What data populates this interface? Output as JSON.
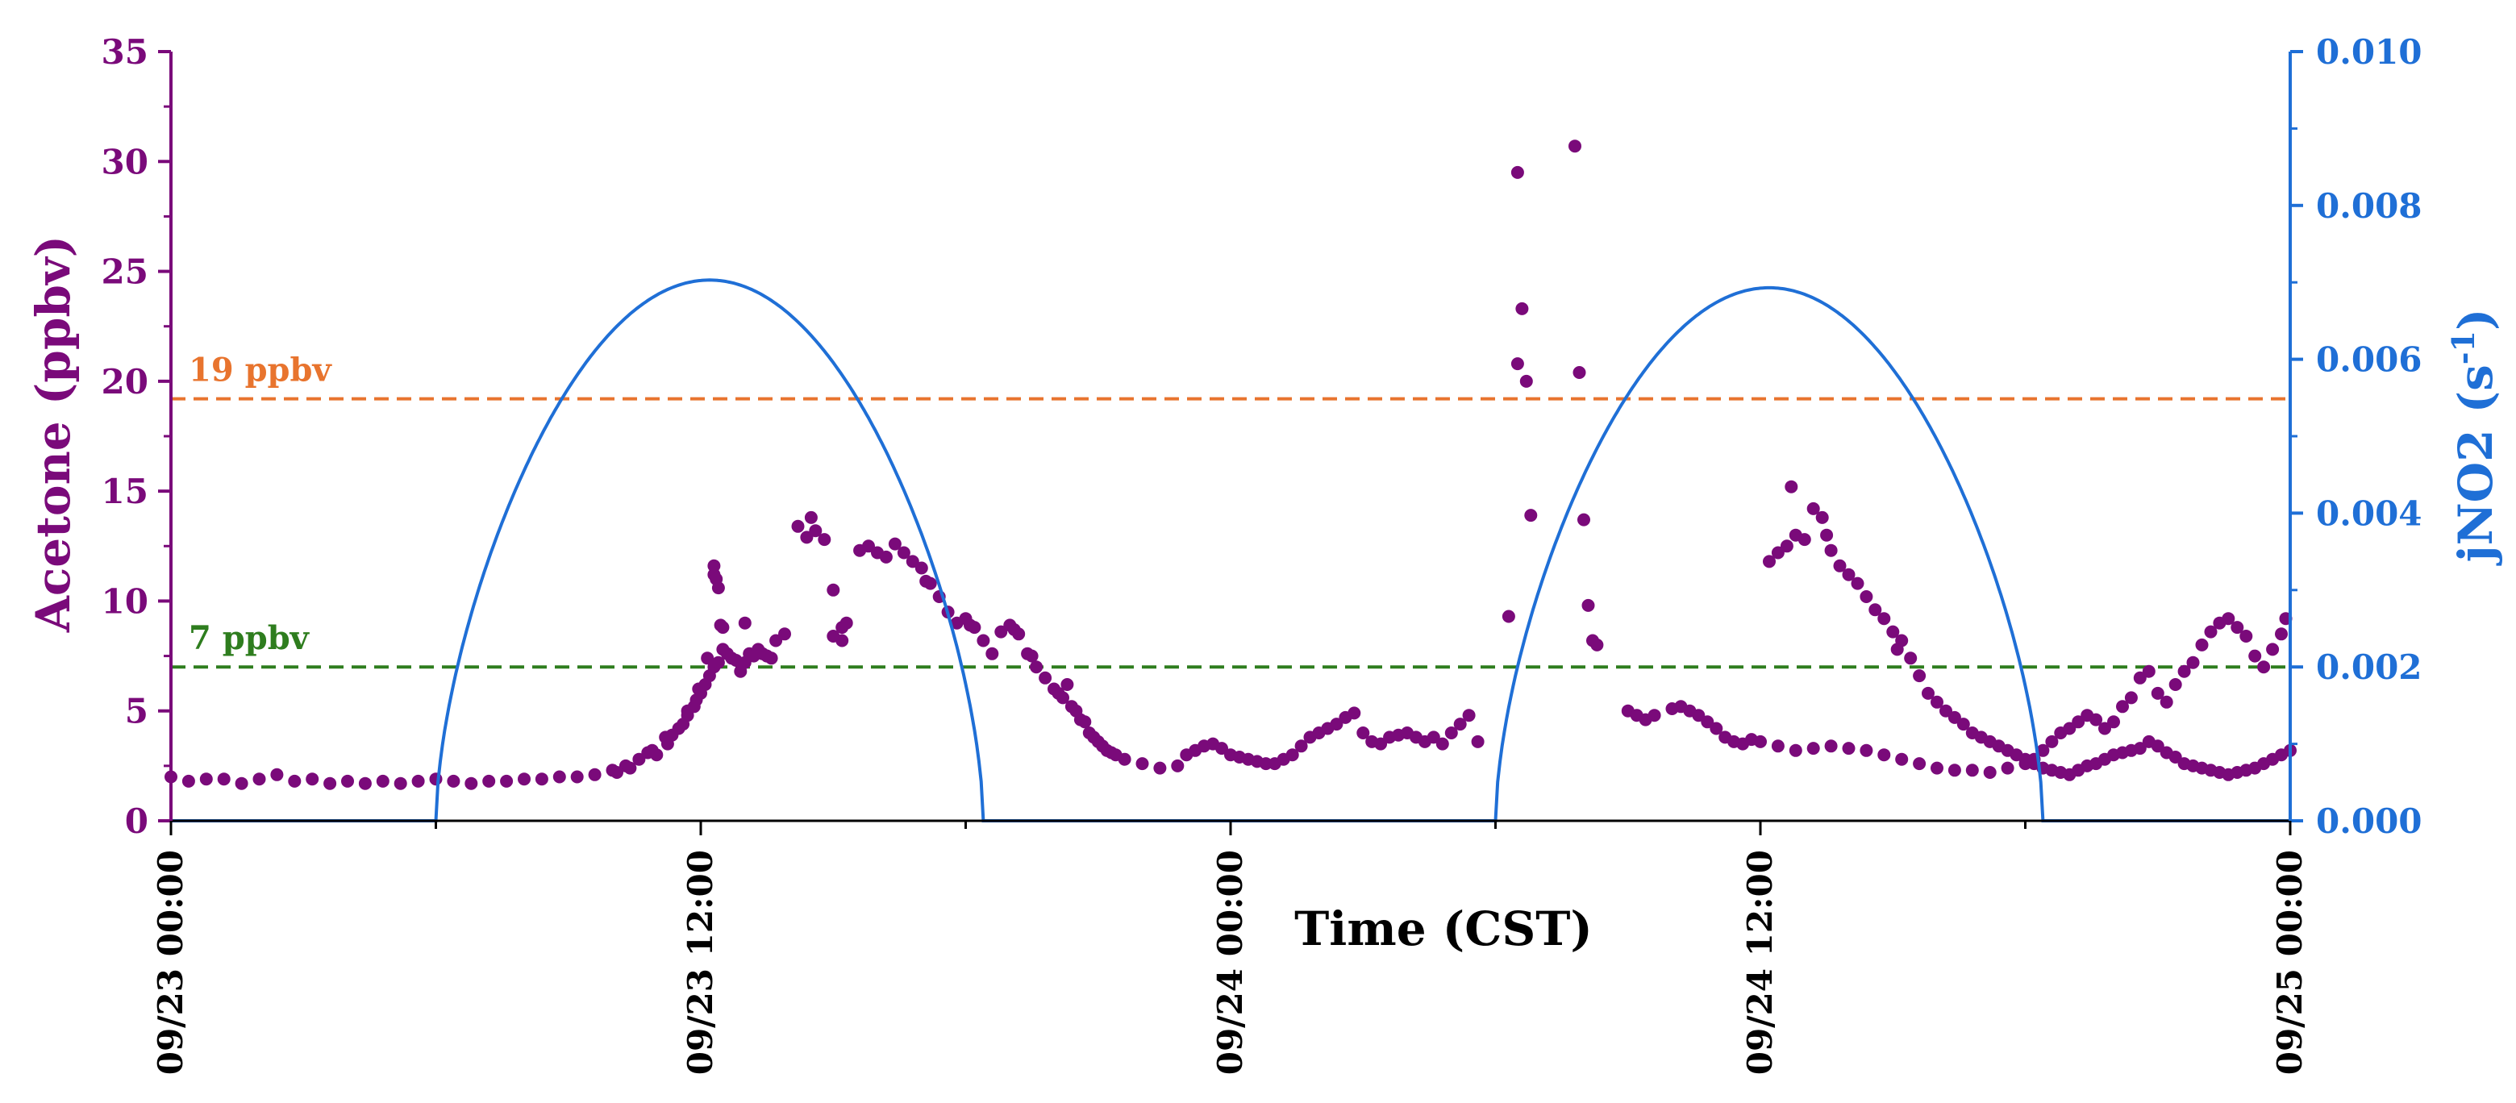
{
  "chart_data": {
    "type": "scatter+line",
    "title": "",
    "xlabel": "Time (CST)",
    "ylabel_left": "Acetone (ppbv)",
    "ylabel_right": "jNO2 (s⁻¹)",
    "ylabel_right_base": "jNO2 (s",
    "ylabel_right_sup": "-1",
    "ylabel_right_close": ")",
    "x_range_hours": [
      0,
      48
    ],
    "x_ticks": [
      {
        "hour": 0,
        "label": "09/23 00:00"
      },
      {
        "hour": 12,
        "label": "09/23 12:00"
      },
      {
        "hour": 24,
        "label": "09/24 00:00"
      },
      {
        "hour": 36,
        "label": "09/24 12:00"
      },
      {
        "hour": 48,
        "label": "09/25 00:00"
      }
    ],
    "y_left_range": [
      0,
      35
    ],
    "y_left_ticks": [
      "0",
      "5",
      "10",
      "15",
      "20",
      "25",
      "30",
      "35"
    ],
    "y_right_range": [
      0,
      0.01
    ],
    "y_right_ticks": [
      "0.000",
      "0.002",
      "0.004",
      "0.006",
      "0.008",
      "0.010"
    ],
    "reference_lines": [
      {
        "value": 19.2,
        "label": "19 ppbv",
        "color": "#E8742E"
      },
      {
        "value": 7,
        "label": "7 ppbv",
        "color": "#2E7D1E"
      }
    ],
    "series": [
      {
        "name": "Acetone",
        "axis": "left",
        "color": "#7A0A7A",
        "points": [
          [
            0.0,
            2.0
          ],
          [
            0.4,
            1.8
          ],
          [
            0.8,
            1.9
          ],
          [
            1.2,
            1.9
          ],
          [
            1.6,
            1.7
          ],
          [
            2.0,
            1.9
          ],
          [
            2.4,
            2.1
          ],
          [
            2.8,
            1.8
          ],
          [
            3.2,
            1.9
          ],
          [
            3.6,
            1.7
          ],
          [
            4.0,
            1.8
          ],
          [
            4.4,
            1.7
          ],
          [
            4.8,
            1.8
          ],
          [
            5.2,
            1.7
          ],
          [
            5.6,
            1.8
          ],
          [
            6.0,
            1.9
          ],
          [
            6.4,
            1.8
          ],
          [
            6.8,
            1.7
          ],
          [
            7.2,
            1.8
          ],
          [
            7.6,
            1.8
          ],
          [
            8.0,
            1.9
          ],
          [
            8.4,
            1.9
          ],
          [
            8.8,
            2.0
          ],
          [
            9.2,
            2.0
          ],
          [
            9.6,
            2.1
          ],
          [
            10.0,
            2.3
          ],
          [
            10.3,
            2.5
          ],
          [
            10.6,
            2.8
          ],
          [
            10.9,
            3.2
          ],
          [
            11.2,
            3.8
          ],
          [
            11.5,
            4.2
          ],
          [
            11.7,
            4.8
          ],
          [
            11.9,
            5.5
          ],
          [
            12.1,
            6.2
          ],
          [
            12.3,
            7.0
          ],
          [
            12.5,
            7.8
          ],
          [
            12.7,
            7.4
          ],
          [
            12.9,
            6.8
          ],
          [
            13.1,
            7.6
          ],
          [
            13.3,
            7.8
          ],
          [
            13.5,
            7.5
          ],
          [
            13.7,
            8.2
          ],
          [
            10.4,
            2.4
          ],
          [
            11.0,
            3.0
          ],
          [
            11.6,
            4.4
          ],
          [
            12.0,
            5.8
          ],
          [
            12.4,
            7.2
          ],
          [
            12.6,
            7.6
          ],
          [
            12.8,
            7.3
          ],
          [
            13.0,
            7.2
          ],
          [
            13.2,
            7.5
          ],
          [
            13.4,
            7.6
          ],
          [
            13.6,
            7.4
          ],
          [
            13.9,
            8.5
          ],
          [
            12.2,
            6.6
          ],
          [
            12.5,
            8.8
          ],
          [
            12.3,
            11.6
          ],
          [
            12.3,
            11.2
          ],
          [
            12.4,
            10.6
          ],
          [
            11.95,
            6.0
          ],
          [
            12.35,
            11.0
          ],
          [
            11.85,
            5.2
          ],
          [
            11.25,
            3.5
          ],
          [
            11.35,
            3.9
          ],
          [
            10.8,
            3.1
          ],
          [
            12.15,
            7.4
          ],
          [
            13.0,
            9.0
          ],
          [
            13.5,
            7.5
          ],
          [
            11.7,
            5.0
          ],
          [
            10.1,
            2.2
          ],
          [
            12.45,
            8.9
          ],
          [
            14.5,
            13.8
          ],
          [
            14.6,
            13.2
          ],
          [
            14.8,
            12.8
          ],
          [
            15.0,
            10.5
          ],
          [
            15.2,
            8.8
          ],
          [
            15.0,
            8.4
          ],
          [
            15.2,
            8.2
          ],
          [
            15.8,
            12.5
          ],
          [
            16.0,
            12.2
          ],
          [
            16.2,
            12.0
          ],
          [
            16.4,
            12.6
          ],
          [
            16.6,
            12.2
          ],
          [
            16.8,
            11.8
          ],
          [
            17.0,
            11.5
          ],
          [
            17.2,
            10.8
          ],
          [
            17.4,
            10.2
          ],
          [
            17.6,
            9.5
          ],
          [
            17.8,
            9.0
          ],
          [
            18.0,
            9.2
          ],
          [
            18.2,
            8.8
          ],
          [
            18.4,
            8.2
          ],
          [
            18.6,
            7.6
          ],
          [
            18.8,
            8.6
          ],
          [
            19.0,
            8.9
          ],
          [
            19.2,
            8.5
          ],
          [
            19.4,
            7.6
          ],
          [
            19.6,
            7.0
          ],
          [
            19.8,
            6.5
          ],
          [
            20.0,
            6.0
          ],
          [
            20.2,
            5.6
          ],
          [
            20.4,
            5.2
          ],
          [
            20.6,
            4.6
          ],
          [
            20.8,
            4.0
          ],
          [
            21.0,
            3.6
          ],
          [
            21.2,
            3.2
          ],
          [
            21.4,
            3.0
          ],
          [
            21.6,
            2.8
          ],
          [
            22.0,
            2.6
          ],
          [
            22.4,
            2.4
          ],
          [
            22.8,
            2.5
          ],
          [
            23.0,
            3.0
          ],
          [
            23.2,
            3.2
          ],
          [
            23.4,
            3.4
          ],
          [
            23.6,
            3.5
          ],
          [
            23.8,
            3.3
          ],
          [
            24.0,
            3.0
          ],
          [
            24.2,
            2.9
          ],
          [
            24.4,
            2.8
          ],
          [
            24.6,
            2.7
          ],
          [
            24.8,
            2.6
          ],
          [
            25.0,
            2.6
          ],
          [
            25.2,
            2.8
          ],
          [
            25.4,
            3.0
          ],
          [
            25.6,
            3.4
          ],
          [
            25.8,
            3.8
          ],
          [
            26.0,
            4.0
          ],
          [
            26.2,
            4.2
          ],
          [
            26.4,
            4.4
          ],
          [
            26.6,
            4.7
          ],
          [
            26.8,
            4.9
          ],
          [
            27.0,
            4.0
          ],
          [
            27.2,
            3.6
          ],
          [
            27.4,
            3.5
          ],
          [
            27.6,
            3.8
          ],
          [
            27.8,
            3.9
          ],
          [
            28.0,
            4.0
          ],
          [
            28.2,
            3.8
          ],
          [
            28.4,
            3.6
          ],
          [
            28.6,
            3.8
          ],
          [
            28.8,
            3.5
          ],
          [
            29.0,
            4.0
          ],
          [
            29.2,
            4.4
          ],
          [
            29.4,
            4.8
          ],
          [
            29.6,
            3.6
          ],
          [
            14.2,
            13.4
          ],
          [
            14.4,
            12.9
          ],
          [
            15.3,
            9.0
          ],
          [
            15.6,
            12.3
          ],
          [
            17.1,
            10.9
          ],
          [
            18.1,
            8.9
          ],
          [
            19.1,
            8.7
          ],
          [
            19.5,
            7.5
          ],
          [
            20.1,
            5.8
          ],
          [
            20.3,
            6.2
          ],
          [
            20.5,
            5.0
          ],
          [
            20.7,
            4.5
          ],
          [
            20.9,
            3.8
          ],
          [
            21.1,
            3.4
          ],
          [
            21.3,
            3.1
          ],
          [
            30.3,
            9.3
          ],
          [
            30.5,
            29.5
          ],
          [
            30.6,
            23.3
          ],
          [
            30.5,
            20.8
          ],
          [
            30.7,
            20.0
          ],
          [
            30.8,
            13.9
          ],
          [
            31.8,
            30.7
          ],
          [
            31.9,
            20.4
          ],
          [
            32.0,
            13.7
          ],
          [
            32.1,
            9.8
          ],
          [
            32.2,
            8.2
          ],
          [
            32.3,
            8.0
          ],
          [
            33.0,
            5.0
          ],
          [
            33.2,
            4.8
          ],
          [
            33.4,
            4.6
          ],
          [
            33.6,
            4.8
          ],
          [
            34.0,
            5.1
          ],
          [
            34.2,
            5.2
          ],
          [
            34.4,
            5.0
          ],
          [
            34.6,
            4.8
          ],
          [
            34.8,
            4.5
          ],
          [
            35.0,
            4.2
          ],
          [
            35.2,
            3.8
          ],
          [
            35.4,
            3.6
          ],
          [
            35.6,
            3.5
          ],
          [
            35.8,
            3.7
          ],
          [
            36.0,
            3.6
          ],
          [
            36.4,
            3.4
          ],
          [
            36.8,
            3.2
          ],
          [
            37.2,
            3.3
          ],
          [
            37.6,
            3.4
          ],
          [
            38.0,
            3.3
          ],
          [
            38.4,
            3.2
          ],
          [
            38.8,
            3.0
          ],
          [
            39.2,
            2.8
          ],
          [
            39.6,
            2.6
          ],
          [
            40.0,
            2.4
          ],
          [
            40.4,
            2.3
          ],
          [
            40.8,
            2.3
          ],
          [
            41.2,
            2.2
          ],
          [
            41.6,
            2.4
          ],
          [
            42.0,
            2.6
          ],
          [
            42.2,
            2.8
          ],
          [
            42.4,
            3.2
          ],
          [
            42.6,
            3.6
          ],
          [
            42.8,
            4.0
          ],
          [
            43.0,
            4.2
          ],
          [
            43.2,
            4.5
          ],
          [
            43.4,
            4.8
          ],
          [
            43.6,
            4.6
          ],
          [
            43.8,
            4.2
          ],
          [
            44.0,
            4.5
          ],
          [
            44.2,
            5.2
          ],
          [
            44.4,
            5.6
          ],
          [
            44.6,
            6.5
          ],
          [
            44.8,
            6.8
          ],
          [
            45.0,
            5.8
          ],
          [
            45.2,
            5.4
          ],
          [
            45.4,
            6.2
          ],
          [
            45.6,
            6.8
          ],
          [
            45.8,
            7.2
          ],
          [
            46.0,
            8.0
          ],
          [
            46.2,
            8.6
          ],
          [
            46.4,
            9.0
          ],
          [
            46.6,
            9.2
          ],
          [
            46.8,
            8.8
          ],
          [
            47.0,
            8.4
          ],
          [
            47.2,
            7.5
          ],
          [
            47.4,
            7.0
          ],
          [
            47.6,
            7.8
          ],
          [
            47.8,
            8.5
          ],
          [
            47.9,
            9.2
          ],
          [
            36.2,
            11.8
          ],
          [
            36.4,
            12.2
          ],
          [
            36.6,
            12.5
          ],
          [
            36.8,
            13.0
          ],
          [
            37.0,
            12.8
          ],
          [
            36.7,
            15.2
          ],
          [
            37.2,
            14.2
          ],
          [
            37.4,
            13.8
          ],
          [
            37.5,
            13.0
          ],
          [
            37.6,
            12.3
          ],
          [
            37.8,
            11.6
          ],
          [
            38.0,
            11.2
          ],
          [
            38.2,
            10.8
          ],
          [
            38.4,
            10.2
          ],
          [
            38.6,
            9.6
          ],
          [
            38.8,
            9.2
          ],
          [
            39.0,
            8.6
          ],
          [
            39.1,
            7.8
          ],
          [
            39.2,
            8.2
          ],
          [
            39.4,
            7.4
          ],
          [
            39.6,
            6.6
          ],
          [
            39.8,
            5.8
          ],
          [
            40.0,
            5.4
          ],
          [
            40.2,
            5.0
          ],
          [
            40.4,
            4.7
          ],
          [
            40.6,
            4.4
          ],
          [
            40.8,
            4.0
          ],
          [
            41.0,
            3.8
          ],
          [
            41.2,
            3.6
          ],
          [
            41.4,
            3.4
          ],
          [
            41.6,
            3.2
          ],
          [
            41.8,
            3.0
          ],
          [
            42.0,
            2.8
          ],
          [
            42.2,
            2.6
          ],
          [
            42.4,
            2.4
          ],
          [
            42.6,
            2.3
          ],
          [
            42.8,
            2.2
          ],
          [
            43.0,
            2.1
          ],
          [
            43.2,
            2.3
          ],
          [
            43.4,
            2.5
          ],
          [
            43.6,
            2.6
          ],
          [
            43.8,
            2.8
          ],
          [
            44.0,
            3.0
          ],
          [
            44.2,
            3.1
          ],
          [
            44.4,
            3.2
          ],
          [
            44.6,
            3.3
          ],
          [
            44.8,
            3.6
          ],
          [
            45.0,
            3.4
          ],
          [
            45.2,
            3.1
          ],
          [
            45.4,
            2.9
          ],
          [
            45.6,
            2.6
          ],
          [
            45.8,
            2.5
          ],
          [
            46.0,
            2.4
          ],
          [
            46.2,
            2.3
          ],
          [
            46.4,
            2.2
          ],
          [
            46.6,
            2.1
          ],
          [
            46.8,
            2.2
          ],
          [
            47.0,
            2.3
          ],
          [
            47.2,
            2.4
          ],
          [
            47.4,
            2.6
          ],
          [
            47.6,
            2.8
          ],
          [
            47.8,
            3.0
          ],
          [
            48.0,
            3.2
          ]
        ]
      },
      {
        "name": "jNO2",
        "axis": "right",
        "color": "#1F6FD6",
        "days": [
          {
            "rise_hour": 6.0,
            "noon_hour": 12.2,
            "set_hour": 18.4,
            "peak": 0.00703
          },
          {
            "rise_hour": 30.0,
            "noon_hour": 36.2,
            "set_hour": 42.4,
            "peak": 0.00693
          }
        ]
      }
    ]
  }
}
